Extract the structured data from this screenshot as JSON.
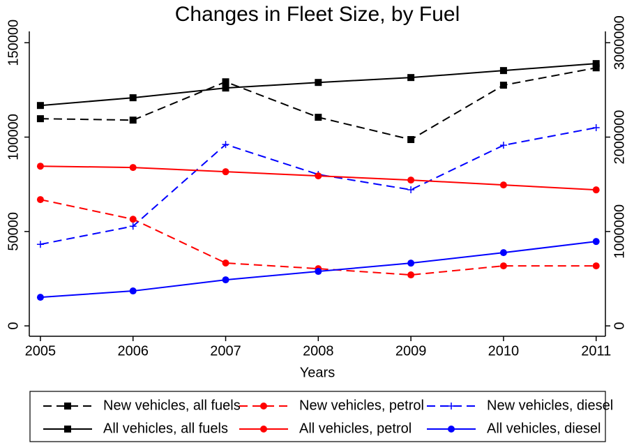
{
  "chart_data": {
    "type": "line",
    "title": "Changes in Fleet Size, by Fuel",
    "x_label": "Years",
    "x": [
      2005,
      2006,
      2007,
      2008,
      2009,
      2010,
      2011
    ],
    "xlim": [
      2004.88,
      2011.1
    ],
    "xticks": [
      2005,
      2006,
      2007,
      2008,
      2009,
      2010,
      2011
    ],
    "ylim": [
      -5500,
      156000
    ],
    "yticks": [
      0,
      50000,
      100000,
      150000
    ],
    "y2lim": [
      -110000,
      3120000
    ],
    "y2ticks": [
      0,
      1000000,
      2000000,
      3000000
    ],
    "grid": false,
    "legend": "bottom",
    "series": [
      {
        "name": "New vehicles, all fuels",
        "color": "#000000",
        "style": "dashed",
        "marker": "square",
        "axis": "y",
        "values": [
          109750,
          109000,
          129300,
          110500,
          98700,
          127500,
          136700
        ]
      },
      {
        "name": "New vehicles, petrol",
        "color": "#ff0000",
        "style": "dashed",
        "marker": "circle",
        "axis": "y",
        "values": [
          66900,
          56500,
          33300,
          30300,
          27000,
          31800,
          31800
        ]
      },
      {
        "name": "New vehicles, diesel",
        "color": "#0000ff",
        "style": "dashed",
        "marker": "plus",
        "axis": "y",
        "values": [
          43200,
          52800,
          96100,
          80200,
          72100,
          95700,
          105000
        ]
      },
      {
        "name": "All vehicles, all fuels",
        "color": "#000000",
        "style": "solid",
        "marker": "square",
        "axis": "y2",
        "values": [
          2335000,
          2417000,
          2520000,
          2579000,
          2631000,
          2705000,
          2779000
        ]
      },
      {
        "name": "All vehicles, petrol",
        "color": "#ff0000",
        "style": "solid",
        "marker": "circle",
        "axis": "y2",
        "values": [
          1692000,
          1678000,
          1633000,
          1589000,
          1545000,
          1493000,
          1441000
        ]
      },
      {
        "name": "All vehicles, diesel",
        "color": "#0000ff",
        "style": "solid",
        "marker": "circle",
        "axis": "y2",
        "values": [
          303000,
          370000,
          488000,
          577000,
          665000,
          776000,
          894000
        ]
      }
    ]
  }
}
